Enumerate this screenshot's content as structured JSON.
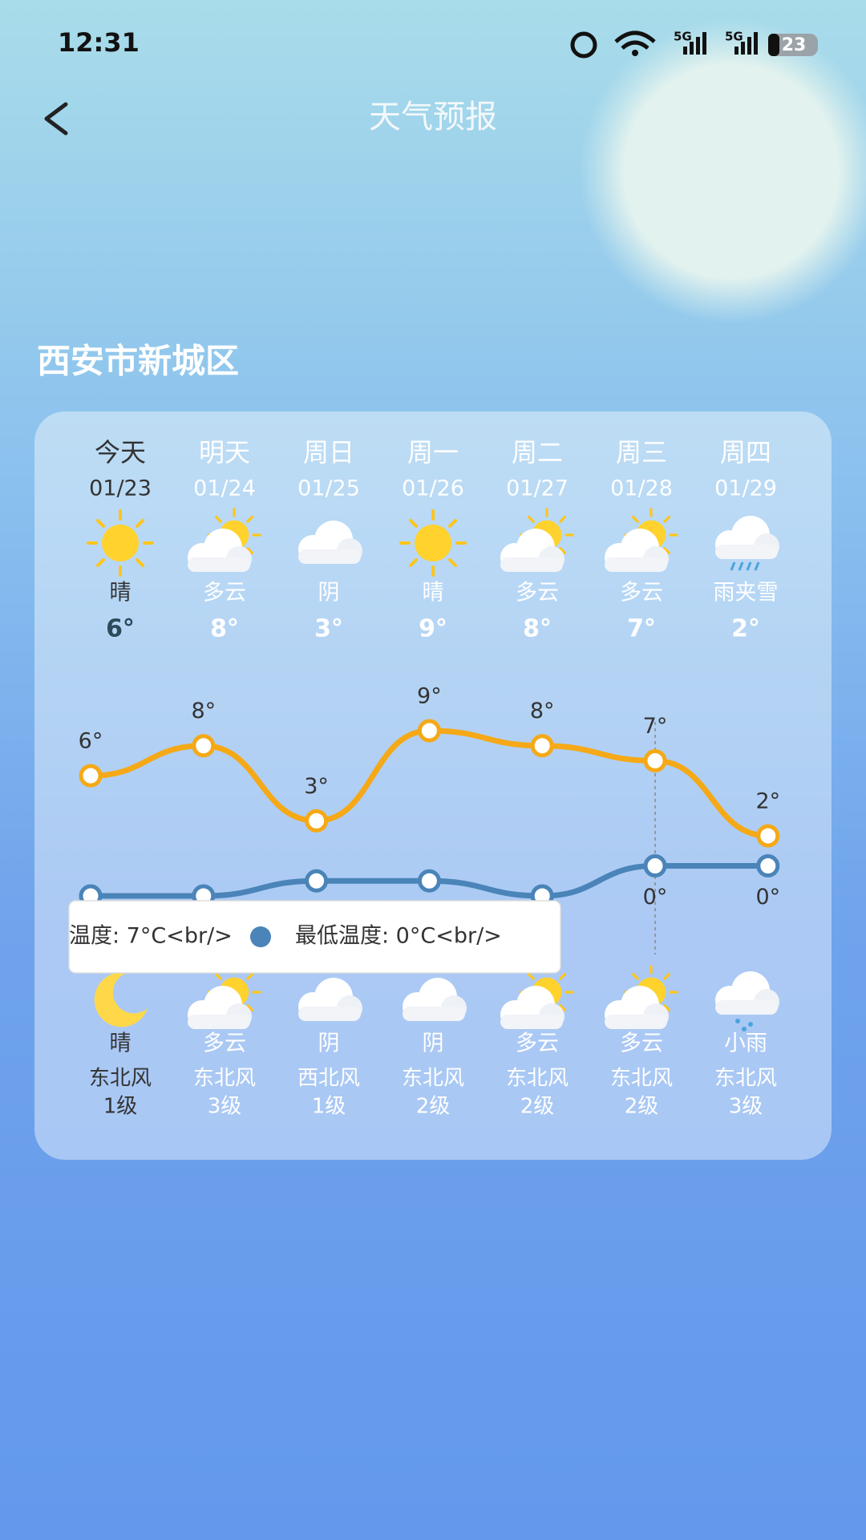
{
  "status_bar": {
    "time": "12:31",
    "network": [
      "5G",
      "5G"
    ],
    "battery": "23"
  },
  "header": {
    "title": "天气预报"
  },
  "location": "西安市新城区",
  "days": [
    {
      "label": "今天",
      "date": "01/23",
      "day_weather": "晴",
      "temp": "6°",
      "night_weather": "晴",
      "wind": "东北风",
      "level": "1级"
    },
    {
      "label": "明天",
      "date": "01/24",
      "day_weather": "多云",
      "temp": "8°",
      "night_weather": "多云",
      "wind": "东北风",
      "level": "3级"
    },
    {
      "label": "周日",
      "date": "01/25",
      "day_weather": "阴",
      "temp": "3°",
      "night_weather": "阴",
      "wind": "西北风",
      "level": "1级"
    },
    {
      "label": "周一",
      "date": "01/26",
      "day_weather": "晴",
      "temp": "9°",
      "night_weather": "阴",
      "wind": "东北风",
      "level": "2级"
    },
    {
      "label": "周二",
      "date": "01/27",
      "day_weather": "多云",
      "temp": "8°",
      "night_weather": "多云",
      "wind": "东北风",
      "level": "2级"
    },
    {
      "label": "周三",
      "date": "01/28",
      "day_weather": "多云",
      "temp": "7°",
      "night_weather": "多云",
      "wind": "东北风",
      "level": "2级"
    },
    {
      "label": "周四",
      "date": "01/29",
      "day_weather": "雨夹雪",
      "temp": "2°",
      "night_weather": "小雨",
      "wind": "东北风",
      "level": "3级"
    }
  ],
  "chart_data": {
    "type": "line",
    "series": [
      {
        "color": "#f5a917",
        "values": [
          6,
          8,
          3,
          9,
          8,
          7,
          2
        ],
        "value_labels": [
          "6°",
          "8°",
          "3°",
          "9°",
          "8°",
          "7°",
          "2°"
        ]
      },
      {
        "color": "#4a84b8",
        "values": [
          -2,
          -2,
          -1,
          -1,
          -2,
          0,
          0
        ],
        "value_labels": [
          null,
          null,
          null,
          null,
          null,
          "0°",
          "0°"
        ]
      }
    ],
    "tooltip": {
      "lines": [
        "温度: 7°C<br/>",
        "最低温度: 0°C<br/>"
      ]
    }
  }
}
